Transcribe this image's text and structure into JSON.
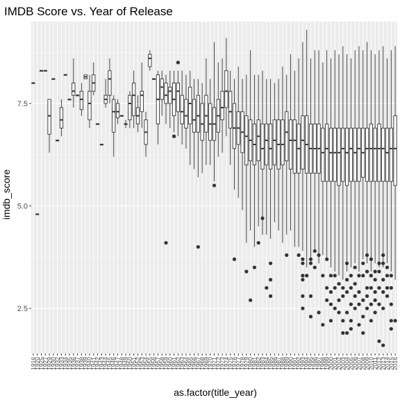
{
  "chart_data": {
    "type": "boxplot",
    "title": "IMDB Score vs. Year of Release",
    "xlabel": "as.factor(title_year)",
    "ylabel": "imdb_score",
    "ylim": [
      1.4,
      9.5
    ],
    "y_ticks": [
      2.5,
      5.0,
      7.5
    ],
    "y_tick_labels": [
      "2.5",
      "5.0",
      "7.5"
    ],
    "grid": true,
    "panel_background": "#ebebeb",
    "grid_color": "#ffffff",
    "box_fill": "#ffffff",
    "box_line": "#333333",
    "outlier_color": "#333333",
    "categories": [
      "1916",
      "1920",
      "1925",
      "1927",
      "1929",
      "1930",
      "1932",
      "1933",
      "1934",
      "1935",
      "1936",
      "1937",
      "1938",
      "1939",
      "1940",
      "1941",
      "1942",
      "1943",
      "1944",
      "1945",
      "1946",
      "1947",
      "1948",
      "1949",
      "1950",
      "1951",
      "1952",
      "1953",
      "1954",
      "1955",
      "1956",
      "1957",
      "1958",
      "1959",
      "1960",
      "1961",
      "1962",
      "1963",
      "1964",
      "1965",
      "1966",
      "1967",
      "1968",
      "1969",
      "1970",
      "1971",
      "1972",
      "1973",
      "1974",
      "1975",
      "1976",
      "1977",
      "1978",
      "1979",
      "1980",
      "1981",
      "1982",
      "1983",
      "1984",
      "1985",
      "1986",
      "1987",
      "1988",
      "1989",
      "1990",
      "1991",
      "1992",
      "1993",
      "1994",
      "1995",
      "1996",
      "1997",
      "1998",
      "1999",
      "2000",
      "2001",
      "2002",
      "2003",
      "2004",
      "2005",
      "2006",
      "2007",
      "2008",
      "2009",
      "2010",
      "2011",
      "2012",
      "2013",
      "2014",
      "2015",
      "2016"
    ],
    "boxes": [
      {
        "min": 8.0,
        "q1": 8.0,
        "median": 8.0,
        "q3": 8.0,
        "max": 8.0,
        "outliers": []
      },
      {
        "min": 4.8,
        "q1": 4.8,
        "median": 4.8,
        "q3": 4.8,
        "max": 4.8,
        "outliers": []
      },
      {
        "min": 8.3,
        "q1": 8.3,
        "median": 8.3,
        "q3": 8.3,
        "max": 8.3,
        "outliers": []
      },
      {
        "min": 8.3,
        "q1": 8.3,
        "median": 8.3,
        "q3": 8.3,
        "max": 8.3,
        "outliers": []
      },
      {
        "min": 6.3,
        "q1": 6.75,
        "median": 7.2,
        "q3": 7.6,
        "max": 7.6,
        "outliers": []
      },
      {
        "min": 8.1,
        "q1": 8.1,
        "median": 8.1,
        "q3": 8.1,
        "max": 8.1,
        "outliers": []
      },
      {
        "min": 6.6,
        "q1": 6.6,
        "median": 6.6,
        "q3": 6.6,
        "max": 6.6,
        "outliers": []
      },
      {
        "min": 6.7,
        "q1": 6.9,
        "median": 7.1,
        "q3": 7.4,
        "max": 7.6,
        "outliers": []
      },
      {
        "min": 8.2,
        "q1": 8.2,
        "median": 8.2,
        "q3": 8.2,
        "max": 8.2,
        "outliers": []
      },
      {
        "min": 7.6,
        "q1": 7.6,
        "median": 7.6,
        "q3": 7.6,
        "max": 7.6,
        "outliers": []
      },
      {
        "min": 7.4,
        "q1": 7.7,
        "median": 7.8,
        "q3": 8.0,
        "max": 8.6,
        "outliers": []
      },
      {
        "min": 7.7,
        "q1": 7.7,
        "median": 7.7,
        "q3": 7.7,
        "max": 7.7,
        "outliers": []
      },
      {
        "min": 7.2,
        "q1": 7.35,
        "median": 7.6,
        "q3": 7.8,
        "max": 8.0,
        "outliers": []
      },
      {
        "min": 8.1,
        "q1": 8.1,
        "median": 8.15,
        "q3": 8.2,
        "max": 8.2,
        "outliers": []
      },
      {
        "min": 6.9,
        "q1": 7.1,
        "median": 7.5,
        "q3": 7.8,
        "max": 8.2,
        "outliers": []
      },
      {
        "min": 7.7,
        "q1": 7.8,
        "median": 8.0,
        "q3": 8.2,
        "max": 8.5,
        "outliers": []
      },
      {
        "min": 7.0,
        "q1": 7.0,
        "median": 7.0,
        "q3": 7.0,
        "max": 7.0,
        "outliers": []
      },
      {
        "min": 6.5,
        "q1": 6.5,
        "median": 6.5,
        "q3": 6.5,
        "max": 6.5,
        "outliers": []
      },
      {
        "min": 7.4,
        "q1": 7.5,
        "median": 7.6,
        "q3": 7.7,
        "max": 8.1,
        "outliers": []
      },
      {
        "min": 7.5,
        "q1": 7.7,
        "median": 8.1,
        "q3": 8.3,
        "max": 8.6,
        "outliers": []
      },
      {
        "min": 6.2,
        "q1": 6.8,
        "median": 7.3,
        "q3": 7.6,
        "max": 7.7,
        "outliers": []
      },
      {
        "min": 7.0,
        "q1": 7.15,
        "median": 7.3,
        "q3": 7.5,
        "max": 7.6,
        "outliers": []
      },
      {
        "min": 7.2,
        "q1": 7.2,
        "median": 7.2,
        "q3": 7.2,
        "max": 7.2,
        "outliers": []
      },
      {
        "min": 6.9,
        "q1": 7.0,
        "median": 7.0,
        "q3": 7.0,
        "max": 7.1,
        "outliers": []
      },
      {
        "min": 6.9,
        "q1": 7.1,
        "median": 7.5,
        "q3": 7.7,
        "max": 7.8,
        "outliers": []
      },
      {
        "min": 6.9,
        "q1": 7.2,
        "median": 7.7,
        "q3": 8.0,
        "max": 8.3,
        "outliers": []
      },
      {
        "min": 6.8,
        "q1": 7.0,
        "median": 7.2,
        "q3": 7.4,
        "max": 7.7,
        "outliers": []
      },
      {
        "min": 6.9,
        "q1": 7.3,
        "median": 7.7,
        "q3": 7.8,
        "max": 8.5,
        "outliers": []
      },
      {
        "min": 6.2,
        "q1": 6.5,
        "median": 6.8,
        "q3": 7.1,
        "max": 7.3,
        "outliers": []
      },
      {
        "min": 8.3,
        "q1": 8.4,
        "median": 8.6,
        "q3": 8.7,
        "max": 8.8,
        "outliers": []
      },
      {
        "min": 8.1,
        "q1": 8.1,
        "median": 8.1,
        "q3": 8.1,
        "max": 8.1,
        "outliers": []
      },
      {
        "min": 6.5,
        "q1": 7.0,
        "median": 7.6,
        "q3": 8.2,
        "max": 8.3,
        "outliers": []
      },
      {
        "min": 7.2,
        "q1": 7.6,
        "median": 7.9,
        "q3": 8.1,
        "max": 8.3,
        "outliers": []
      },
      {
        "min": 7.0,
        "q1": 7.5,
        "median": 7.7,
        "q3": 8.0,
        "max": 8.2,
        "outliers": [
          4.1
        ]
      },
      {
        "min": 6.9,
        "q1": 7.5,
        "median": 7.8,
        "q3": 7.9,
        "max": 8.3,
        "outliers": []
      },
      {
        "min": 6.8,
        "q1": 7.2,
        "median": 7.6,
        "q3": 8.0,
        "max": 8.3,
        "outliers": [
          6.7
        ]
      },
      {
        "min": 6.7,
        "q1": 7.3,
        "median": 7.8,
        "q3": 8.0,
        "max": 8.3,
        "outliers": [
          8.5
        ]
      },
      {
        "min": 6.5,
        "q1": 7.0,
        "median": 7.3,
        "q3": 7.7,
        "max": 8.3,
        "outliers": []
      },
      {
        "min": 6.4,
        "q1": 6.9,
        "median": 7.2,
        "q3": 7.6,
        "max": 8.2,
        "outliers": []
      },
      {
        "min": 6.0,
        "q1": 7.0,
        "median": 7.5,
        "q3": 7.9,
        "max": 8.3,
        "outliers": []
      },
      {
        "min": 5.9,
        "q1": 6.8,
        "median": 7.1,
        "q3": 7.6,
        "max": 8.1,
        "outliers": []
      },
      {
        "min": 5.7,
        "q1": 6.8,
        "median": 7.2,
        "q3": 7.7,
        "max": 8.1,
        "outliers": [
          4.0
        ]
      },
      {
        "min": 5.8,
        "q1": 6.6,
        "median": 7.0,
        "q3": 7.5,
        "max": 8.0,
        "outliers": []
      },
      {
        "min": 6.0,
        "q1": 6.8,
        "median": 7.2,
        "q3": 7.7,
        "max": 8.6,
        "outliers": []
      },
      {
        "min": 6.0,
        "q1": 6.6,
        "median": 7.0,
        "q3": 7.5,
        "max": 8.1,
        "outliers": []
      },
      {
        "min": 5.6,
        "q1": 6.6,
        "median": 7.0,
        "q3": 7.4,
        "max": 9.0,
        "outliers": [
          5.5
        ]
      },
      {
        "min": 6.2,
        "q1": 6.8,
        "median": 7.2,
        "q3": 7.6,
        "max": 8.5,
        "outliers": []
      },
      {
        "min": 6.3,
        "q1": 7.1,
        "median": 7.4,
        "q3": 7.8,
        "max": 8.6,
        "outliers": []
      },
      {
        "min": 6.7,
        "q1": 7.4,
        "median": 7.8,
        "q3": 8.3,
        "max": 9.1,
        "outliers": []
      },
      {
        "min": 6.0,
        "q1": 6.9,
        "median": 7.3,
        "q3": 7.8,
        "max": 8.3,
        "outliers": []
      },
      {
        "min": 5.4,
        "q1": 6.4,
        "median": 6.9,
        "q3": 7.5,
        "max": 8.1,
        "outliers": [
          3.7
        ]
      },
      {
        "min": 5.2,
        "q1": 6.5,
        "median": 6.9,
        "q3": 7.3,
        "max": 8.4,
        "outliers": []
      },
      {
        "min": 4.9,
        "q1": 6.3,
        "median": 6.8,
        "q3": 7.3,
        "max": 8.1,
        "outliers": []
      },
      {
        "min": 4.1,
        "q1": 6.0,
        "median": 6.7,
        "q3": 7.2,
        "max": 8.2,
        "outliers": [
          3.4
        ]
      },
      {
        "min": 4.4,
        "q1": 6.1,
        "median": 6.6,
        "q3": 7.1,
        "max": 8.8,
        "outliers": [
          2.7
        ]
      },
      {
        "min": 4.0,
        "q1": 6.0,
        "median": 6.5,
        "q3": 7.0,
        "max": 8.2,
        "outliers": [
          3.5
        ]
      },
      {
        "min": 4.5,
        "q1": 6.1,
        "median": 6.7,
        "q3": 7.1,
        "max": 8.2,
        "outliers": [
          4.1
        ]
      },
      {
        "min": 4.3,
        "q1": 5.9,
        "median": 6.4,
        "q3": 7.0,
        "max": 8.3,
        "outliers": [
          4.7
        ]
      },
      {
        "min": 4.3,
        "q1": 6.0,
        "median": 6.6,
        "q3": 7.0,
        "max": 8.1,
        "outliers": [
          3.0
        ]
      },
      {
        "min": 4.2,
        "q1": 5.9,
        "median": 6.4,
        "q3": 7.0,
        "max": 8.1,
        "outliers": [
          3.6,
          3.2,
          2.8
        ]
      },
      {
        "min": 4.6,
        "q1": 6.0,
        "median": 6.6,
        "q3": 7.1,
        "max": 8.0,
        "outliers": []
      },
      {
        "min": 4.4,
        "q1": 5.9,
        "median": 6.5,
        "q3": 7.1,
        "max": 8.1,
        "outliers": []
      },
      {
        "min": 4.1,
        "q1": 6.0,
        "median": 6.5,
        "q3": 7.1,
        "max": 8.4,
        "outliers": []
      },
      {
        "min": 4.3,
        "q1": 6.1,
        "median": 6.8,
        "q3": 7.3,
        "max": 8.2,
        "outliers": [
          3.8
        ]
      },
      {
        "min": 4.4,
        "q1": 5.9,
        "median": 6.6,
        "q3": 7.1,
        "max": 8.7,
        "outliers": []
      },
      {
        "min": 4.0,
        "q1": 5.8,
        "median": 6.6,
        "q3": 7.1,
        "max": 8.3,
        "outliers": []
      },
      {
        "min": 4.0,
        "q1": 5.8,
        "median": 6.4,
        "q3": 7.0,
        "max": 8.6,
        "outliers": [
          3.8
        ]
      },
      {
        "min": 3.9,
        "q1": 5.9,
        "median": 6.6,
        "q3": 7.2,
        "max": 9.0,
        "outliers": [
          3.3,
          3.7,
          3.6,
          3.2,
          2.8,
          2.5
        ]
      },
      {
        "min": 3.5,
        "q1": 5.8,
        "median": 6.5,
        "q3": 7.2,
        "max": 9.3,
        "outliers": [
          3.3
        ]
      },
      {
        "min": 3.6,
        "q1": 5.8,
        "median": 6.4,
        "q3": 7.0,
        "max": 8.6,
        "outliers": [
          3.7,
          3.6,
          2.8,
          2.3
        ]
      },
      {
        "min": 3.9,
        "q1": 5.8,
        "median": 6.4,
        "q3": 7.0,
        "max": 8.8,
        "outliers": [
          3.9,
          3.5
        ]
      },
      {
        "min": 3.6,
        "q1": 5.8,
        "median": 6.4,
        "q3": 7.0,
        "max": 8.8,
        "outliers": [
          3.8,
          2.4
        ]
      },
      {
        "min": 3.8,
        "q1": 5.6,
        "median": 6.3,
        "q3": 6.9,
        "max": 8.5,
        "outliers": [
          3.3,
          2.1
        ]
      },
      {
        "min": 3.7,
        "q1": 5.6,
        "median": 6.4,
        "q3": 7.0,
        "max": 8.8,
        "outliers": [
          3.7,
          3.0,
          2.7
        ]
      },
      {
        "min": 3.5,
        "q1": 5.6,
        "median": 6.3,
        "q3": 6.9,
        "max": 8.6,
        "outliers": [
          3.3,
          2.9,
          2.6,
          2.2
        ]
      },
      {
        "min": 3.4,
        "q1": 5.6,
        "median": 6.3,
        "q3": 6.9,
        "max": 8.8,
        "outliers": [
          3.3,
          3.0,
          2.5
        ]
      },
      {
        "min": 3.3,
        "q1": 5.5,
        "median": 6.3,
        "q3": 6.9,
        "max": 8.7,
        "outliers": [
          3.1,
          2.7,
          2.4
        ]
      },
      {
        "min": 3.2,
        "q1": 5.6,
        "median": 6.4,
        "q3": 6.9,
        "max": 8.9,
        "outliers": [
          3.0,
          2.8,
          2.2,
          1.9
        ]
      },
      {
        "min": 3.4,
        "q1": 5.5,
        "median": 6.3,
        "q3": 6.9,
        "max": 8.7,
        "outliers": [
          3.6,
          3.2,
          2.9,
          2.4,
          1.9
        ]
      },
      {
        "min": 3.5,
        "q1": 5.6,
        "median": 6.4,
        "q3": 6.9,
        "max": 8.6,
        "outliers": [
          3.3,
          3.0,
          2.6,
          2.2,
          2.0
        ]
      },
      {
        "min": 3.6,
        "q1": 5.6,
        "median": 6.3,
        "q3": 6.9,
        "max": 8.8,
        "outliers": [
          3.5,
          3.1,
          2.8,
          2.5
        ]
      },
      {
        "min": 3.4,
        "q1": 5.6,
        "median": 6.4,
        "q3": 6.9,
        "max": 8.9,
        "outliers": [
          3.3,
          2.9,
          2.6,
          2.1
        ]
      },
      {
        "min": 3.7,
        "q1": 5.7,
        "median": 6.3,
        "q3": 6.9,
        "max": 8.8,
        "outliers": [
          3.6,
          3.3,
          2.7,
          2.3,
          1.9
        ]
      },
      {
        "min": 3.6,
        "q1": 5.6,
        "median": 6.4,
        "q3": 6.9,
        "max": 9.0,
        "outliers": [
          3.8,
          3.4,
          3.0,
          2.8,
          2.5
        ]
      },
      {
        "min": 3.4,
        "q1": 5.6,
        "median": 6.4,
        "q3": 7.0,
        "max": 8.8,
        "outliers": [
          3.7,
          3.3,
          3.0,
          2.6,
          2.2
        ]
      },
      {
        "min": 3.6,
        "q1": 5.6,
        "median": 6.4,
        "q3": 6.9,
        "max": 8.7,
        "outliers": [
          3.4,
          3.2,
          2.9,
          2.7,
          2.4
        ]
      },
      {
        "min": 3.5,
        "q1": 5.6,
        "median": 6.4,
        "q3": 7.0,
        "max": 8.8,
        "outliers": [
          3.6,
          3.4,
          3.0,
          2.6,
          1.7
        ]
      },
      {
        "min": 3.5,
        "q1": 5.6,
        "median": 6.4,
        "q3": 6.9,
        "max": 8.9,
        "outliers": [
          3.8,
          3.6,
          3.2,
          2.9,
          2.5,
          1.6
        ]
      },
      {
        "min": 3.6,
        "q1": 5.6,
        "median": 6.3,
        "q3": 6.9,
        "max": 8.6,
        "outliers": [
          3.5,
          3.3,
          3.0,
          2.8
        ]
      },
      {
        "min": 3.4,
        "q1": 5.6,
        "median": 6.4,
        "q3": 6.9,
        "max": 8.8,
        "outliers": [
          3.3,
          3.0,
          2.6,
          2.2,
          2.0
        ]
      },
      {
        "min": 3.2,
        "q1": 5.5,
        "median": 6.4,
        "q3": 7.2,
        "max": 8.9,
        "outliers": [
          2.2
        ]
      }
    ]
  }
}
